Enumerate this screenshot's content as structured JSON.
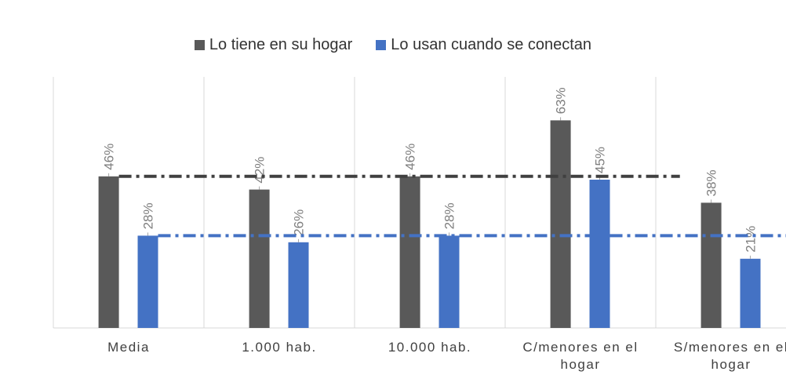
{
  "chart_data": {
    "type": "bar",
    "categories": [
      [
        "Media"
      ],
      [
        "1.000 hab."
      ],
      [
        "10.000 hab."
      ],
      [
        "C/menores en el",
        "hogar"
      ],
      [
        "S/menores en el",
        "hogar"
      ]
    ],
    "series": [
      {
        "name": "Lo tiene en su hogar",
        "color": "#595959",
        "values": [
          46,
          42,
          46,
          63,
          38
        ],
        "labels": [
          "46%",
          "42%",
          "46%",
          "63%",
          "38%"
        ]
      },
      {
        "name": "Lo usan cuando se conectan",
        "color": "#4472c4",
        "values": [
          28,
          26,
          28,
          45,
          21
        ],
        "labels": [
          "28%",
          "26%",
          "28%",
          "45%",
          "21%"
        ]
      }
    ],
    "reference_lines": [
      {
        "series": "Lo tiene en su hogar",
        "value": 46,
        "style": "dash-dot",
        "color": "#404040"
      },
      {
        "series": "Lo usan cuando se conectan",
        "value": 28,
        "style": "dash-dot",
        "color": "#4472c4"
      }
    ],
    "ylim": [
      0,
      70
    ],
    "grid": "vertical-separators",
    "legend": "top-center",
    "xlabel": "",
    "ylabel": ""
  }
}
